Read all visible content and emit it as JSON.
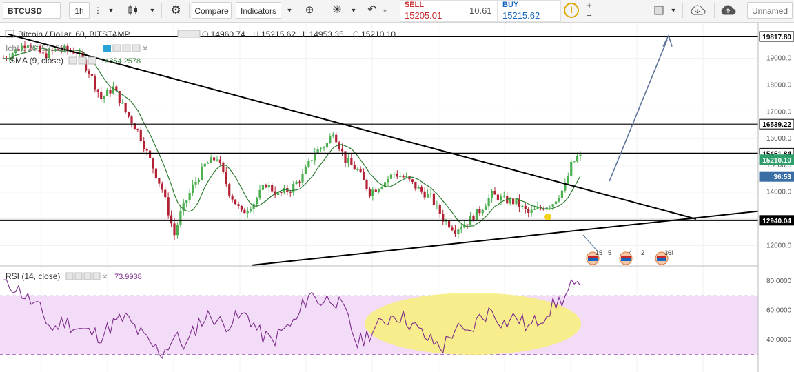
{
  "toolbar": {
    "symbol": "BTCUSD",
    "interval": "1h",
    "compare_label": "Compare",
    "indicators_label": "Indicators",
    "sell_label": "SELL",
    "sell_price": "15205.01",
    "spread": "10.61",
    "buy_label": "BUY",
    "buy_price": "15215.62",
    "layout_name": "Unnamed"
  },
  "main_legend": {
    "title": "Bitcoin / Dollar, 60, BITSTAMP",
    "open": "O 14960.74",
    "high": "H 15215.62",
    "low": "L 14953.35",
    "close": "C 15210.10",
    "indicator_1": "Ichi... 26, 52, 26)",
    "indicator_2": "SMA (9, close)",
    "indicator_2_value": "14854.2578"
  },
  "rsi_legend": {
    "title": "RSI (14, close)",
    "value": "73.9938"
  },
  "colors": {
    "up": "#4caf50",
    "down": "#b22234",
    "sma": "#2e7d32",
    "rsi_line": "#7b2a8a",
    "rsi_band": "#f3dcf7",
    "highlight": "#f7f07a",
    "arrow": "#5b7399",
    "last_price": "#2e9e6a",
    "timer": "#3a6ea5"
  },
  "price_labels": [
    "19817.80",
    "16539.22",
    "15451.84",
    "15210.10",
    "36:53",
    "12940.04"
  ],
  "event_counts": [
    "15",
    "5",
    "4",
    "2",
    "36!"
  ],
  "chart_data": [
    {
      "type": "candlestick",
      "title": "Bitcoin / Dollar, 60, BITSTAMP",
      "y_ticks": [
        12000,
        13000,
        14000,
        15000,
        16000,
        17000,
        18000,
        19000
      ],
      "ylim": [
        11600,
        20000
      ],
      "horizontal_levels": [
        19817.8,
        16539.22,
        15451.84,
        12940.04
      ],
      "last_price": 15210.1,
      "path": [
        [
          0,
          19000
        ],
        [
          4,
          19300
        ],
        [
          8,
          19600
        ],
        [
          13,
          19100
        ],
        [
          18,
          19350
        ],
        [
          24,
          19250
        ],
        [
          28,
          18500
        ],
        [
          32,
          17500
        ],
        [
          36,
          17900
        ],
        [
          40,
          17000
        ],
        [
          44,
          16300
        ],
        [
          48,
          15200
        ],
        [
          52,
          14100
        ],
        [
          56,
          12400
        ],
        [
          58,
          13200
        ],
        [
          62,
          14200
        ],
        [
          66,
          15000
        ],
        [
          70,
          15300
        ],
        [
          74,
          14000
        ],
        [
          78,
          13200
        ],
        [
          82,
          13600
        ],
        [
          86,
          14300
        ],
        [
          90,
          13900
        ],
        [
          94,
          14100
        ],
        [
          98,
          14600
        ],
        [
          102,
          15500
        ],
        [
          106,
          15800
        ],
        [
          108,
          16300
        ],
        [
          112,
          15200
        ],
        [
          116,
          14800
        ],
        [
          120,
          14000
        ],
        [
          124,
          14300
        ],
        [
          128,
          14700
        ],
        [
          132,
          14500
        ],
        [
          136,
          14100
        ],
        [
          140,
          13800
        ],
        [
          144,
          13000
        ],
        [
          148,
          12600
        ],
        [
          152,
          12900
        ],
        [
          156,
          13300
        ],
        [
          160,
          13900
        ],
        [
          164,
          13700
        ],
        [
          168,
          13600
        ],
        [
          172,
          13200
        ],
        [
          176,
          13400
        ],
        [
          180,
          13600
        ],
        [
          184,
          14200
        ],
        [
          186,
          15000
        ],
        [
          188,
          15300
        ]
      ],
      "wick_spread": 200
    },
    {
      "type": "line",
      "title": "RSI (14, close)",
      "y_ticks": [
        40,
        60,
        80
      ],
      "ylim": [
        25,
        82
      ],
      "band": [
        30,
        70
      ],
      "last_value": 73.9938,
      "path": [
        [
          0,
          79
        ],
        [
          4,
          76
        ],
        [
          8,
          68
        ],
        [
          12,
          60
        ],
        [
          16,
          47
        ],
        [
          20,
          53
        ],
        [
          24,
          48
        ],
        [
          28,
          45
        ],
        [
          32,
          43
        ],
        [
          36,
          51
        ],
        [
          40,
          55
        ],
        [
          44,
          46
        ],
        [
          48,
          37
        ],
        [
          52,
          31
        ],
        [
          56,
          42
        ],
        [
          60,
          36
        ],
        [
          64,
          52
        ],
        [
          68,
          57
        ],
        [
          72,
          50
        ],
        [
          76,
          54
        ],
        [
          80,
          57
        ],
        [
          84,
          44
        ],
        [
          88,
          39
        ],
        [
          92,
          47
        ],
        [
          96,
          53
        ],
        [
          100,
          72
        ],
        [
          104,
          66
        ],
        [
          108,
          69
        ],
        [
          112,
          58
        ],
        [
          116,
          37
        ],
        [
          120,
          45
        ],
        [
          124,
          51
        ],
        [
          128,
          58
        ],
        [
          132,
          54
        ],
        [
          136,
          46
        ],
        [
          140,
          39
        ],
        [
          144,
          35
        ],
        [
          148,
          48
        ],
        [
          152,
          43
        ],
        [
          156,
          55
        ],
        [
          160,
          60
        ],
        [
          164,
          51
        ],
        [
          168,
          56
        ],
        [
          172,
          48
        ],
        [
          176,
          55
        ],
        [
          180,
          63
        ],
        [
          184,
          69
        ],
        [
          186,
          77
        ],
        [
          188,
          74
        ]
      ]
    }
  ]
}
